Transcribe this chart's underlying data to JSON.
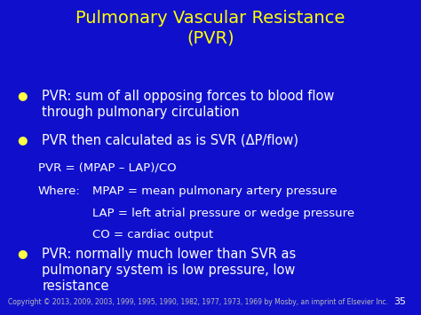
{
  "background_color": "#1010CC",
  "title_line1": "Pulmonary Vascular Resistance",
  "title_line2": "(PVR)",
  "title_color": "#FFFF00",
  "title_fontsize": 14,
  "body_color": "#FFFFFF",
  "body_fontsize": 10.5,
  "bullet_color": "#FFFF44",
  "bullet_char": "●",
  "bullet1_line1": "PVR: sum of all opposing forces to blood flow",
  "bullet1_line2": "through pulmonary circulation",
  "bullet2": "PVR then calculated as is SVR (ΔP/flow)",
  "formula_line1": "PVR = (MPAP – LAP)/CO",
  "formula_line2_label": "Where:",
  "formula_line2_val": "MPAP = mean pulmonary artery pressure",
  "formula_line3": "LAP = left atrial pressure or wedge pressure",
  "formula_line4": "CO = cardiac output",
  "bullet3_line1": "PVR: normally much lower than SVR as",
  "bullet3_line2": "pulmonary system is low pressure, low",
  "bullet3_line3": "resistance",
  "formula_fontsize": 9.5,
  "copyright": "Copyright © 2013, 2009, 2003, 1999, 1995, 1990, 1982, 1977, 1973, 1969 by Mosby, an imprint of Elsevier Inc.",
  "copyright_color": "#BBBBBB",
  "copyright_fontsize": 5.5,
  "page_number": "35",
  "page_color": "#FFFFFF",
  "page_fontsize": 8
}
